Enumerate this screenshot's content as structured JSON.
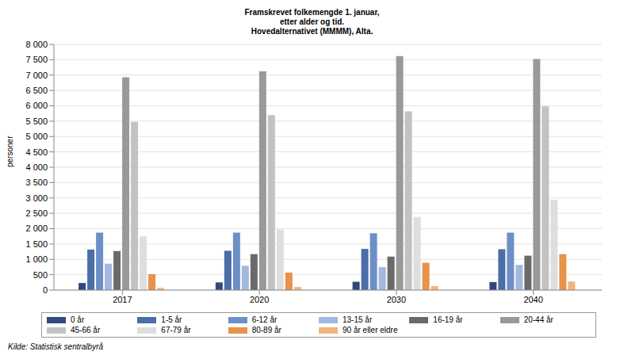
{
  "chart_data": {
    "type": "bar",
    "title": "Framskrevet folkemengde 1. januar,\netter alder og tid.\nHovedalternativet (MMMM), Alta.",
    "y_label": "personer",
    "source": "Kilde: Statistisk sentralbyrå",
    "categories": [
      "2017",
      "2020",
      "2030",
      "2040"
    ],
    "series": [
      {
        "name": "0 år",
        "color": "#2e4a7a",
        "values": [
          230,
          250,
          270,
          260
        ]
      },
      {
        "name": "1-5 år",
        "color": "#4a6ea8",
        "values": [
          1320,
          1280,
          1340,
          1330
        ]
      },
      {
        "name": "6-12 år",
        "color": "#6d8fc8",
        "values": [
          1870,
          1870,
          1850,
          1870
        ]
      },
      {
        "name": "13-15 år",
        "color": "#a3b8de",
        "values": [
          860,
          790,
          750,
          820
        ]
      },
      {
        "name": "16-19 år",
        "color": "#6a6a6a",
        "values": [
          1270,
          1170,
          1090,
          1120
        ]
      },
      {
        "name": "20-44 år",
        "color": "#999999",
        "values": [
          6930,
          7120,
          7620,
          7520
        ]
      },
      {
        "name": "45-66 år",
        "color": "#c2c2c2",
        "values": [
          5480,
          5700,
          5820,
          5980
        ]
      },
      {
        "name": "67-79 år",
        "color": "#dedede",
        "values": [
          1750,
          1970,
          2380,
          2940
        ]
      },
      {
        "name": "80-89 år",
        "color": "#e8924a",
        "values": [
          520,
          570,
          890,
          1170
        ]
      },
      {
        "name": "90 år eller eldre",
        "color": "#f2b47a",
        "values": [
          70,
          100,
          130,
          280
        ]
      }
    ],
    "ylim": [
      0,
      8000
    ],
    "yticks": [
      0,
      500,
      {
        "value": 1000,
        "label": "1 000"
      },
      {
        "value": 1500,
        "label": "1 500"
      },
      {
        "value": 2000,
        "label": "2 000"
      },
      {
        "value": 2500,
        "label": "2 500"
      },
      {
        "value": 3000,
        "label": "3 000"
      },
      {
        "value": 3500,
        "label": "3 500"
      },
      {
        "value": 4000,
        "label": "4 000"
      },
      {
        "value": 4500,
        "label": "4 500"
      },
      {
        "value": 5000,
        "label": "5 000"
      },
      {
        "value": 5500,
        "label": "5 500"
      },
      {
        "value": 6000,
        "label": "6 000"
      },
      {
        "value": 6500,
        "label": "6 500"
      },
      {
        "value": 7000,
        "label": "7 000"
      },
      {
        "value": 7500,
        "label": "7 500"
      },
      {
        "value": 8000,
        "label": "8 000"
      }
    ],
    "grid": true,
    "legend": "bottom"
  }
}
